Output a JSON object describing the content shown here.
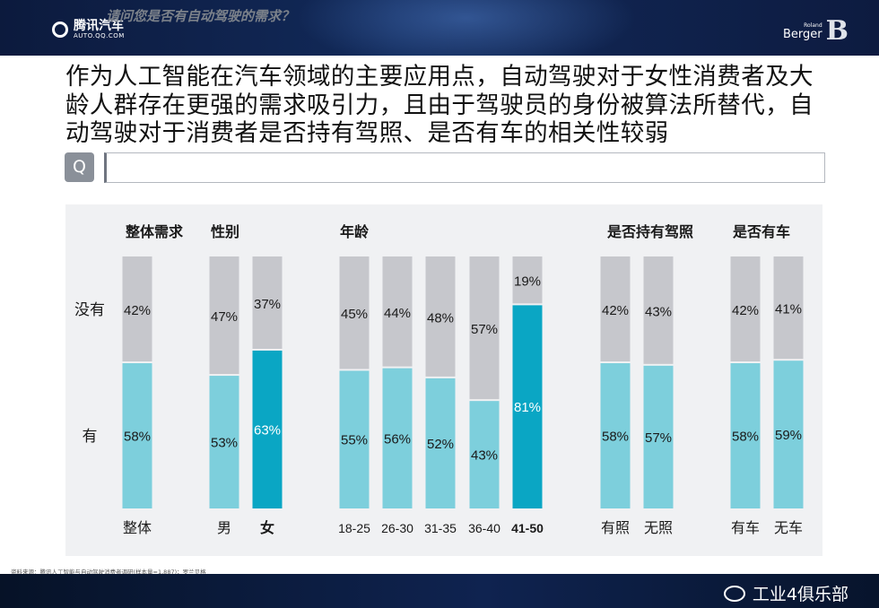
{
  "header": {
    "left_logo": {
      "name": "腾讯汽车",
      "sub": "AUTO.QQ.COM"
    },
    "right_logo": {
      "small": "Roland",
      "big": "Berger",
      "glyph": "B"
    }
  },
  "headline": "作为人工智能在汽车领域的主要应用点，自动驾驶对于女性消费者及大龄人群存在更强的需求吸引力，且由于驾驶员的身份被算法所替代，自动驾驶对于消费者是否持有驾照、是否有车的相关性较弱",
  "question": {
    "badge": "Q",
    "text": "请问您是否有自动驾驶的需求？"
  },
  "source_note": "资料来源：腾讯人工智能与自动驾驶消费者调研(样本量=1,887)；罗兰贝格",
  "watermark": "工业4俱乐部",
  "colors": {
    "gray": "#c6c7cc",
    "light_blue": "#7dcfdc",
    "highlight_blue": "#0aa6c4",
    "text": "#1a1a1a",
    "highlight_text": "#ffffff"
  },
  "chart_data": {
    "type": "bar",
    "stacked": "percent",
    "series": [
      {
        "name": "没有",
        "values": [
          42,
          47,
          37,
          45,
          44,
          48,
          57,
          19,
          42,
          43,
          42,
          41
        ]
      },
      {
        "name": "有",
        "values": [
          58,
          53,
          63,
          55,
          56,
          52,
          43,
          81,
          58,
          57,
          58,
          59
        ]
      }
    ],
    "groups": [
      {
        "title": "整体需求",
        "categories": [
          "整体"
        ]
      },
      {
        "title": "性别",
        "categories": [
          "男",
          "女"
        ]
      },
      {
        "title": "年龄",
        "categories": [
          "18-25",
          "26-30",
          "31-35",
          "36-40",
          "41-50"
        ]
      },
      {
        "title": "是否持有驾照",
        "categories": [
          "有照",
          "无照"
        ]
      },
      {
        "title": "是否有车",
        "categories": [
          "有车",
          "无车"
        ]
      }
    ],
    "categories": [
      "整体",
      "男",
      "女",
      "18-25",
      "26-30",
      "31-35",
      "36-40",
      "41-50",
      "有照",
      "无照",
      "有车",
      "无车"
    ],
    "highlighted": [
      "女",
      "41-50"
    ],
    "row_labels": {
      "top": "没有",
      "bottom": "有"
    },
    "value_suffix": "%",
    "ylim": [
      0,
      100
    ]
  }
}
